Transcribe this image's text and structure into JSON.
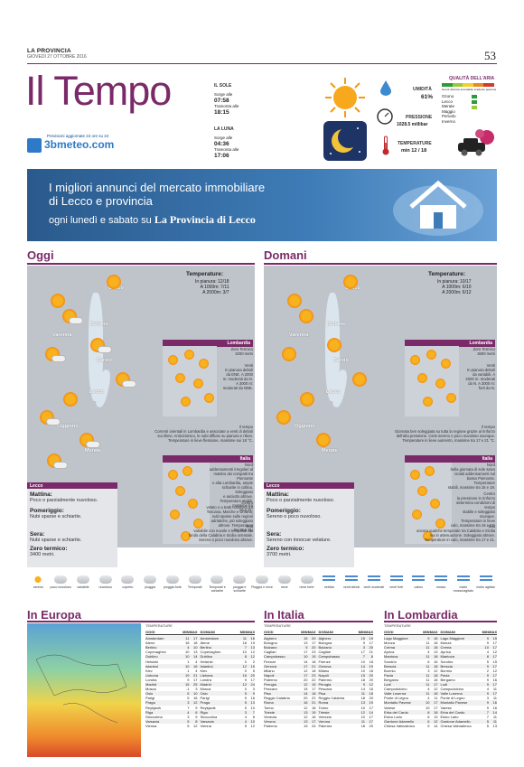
{
  "header": {
    "paper": "LA PROVINCIA",
    "date": "GIOVEDÌ 27 OTTOBRE 2016",
    "page": "53"
  },
  "title": "Il Tempo",
  "meteo": {
    "note": "Previsioni aggiornate 24 ore su 24",
    "logo": "3bmeteo.com"
  },
  "sole": {
    "label": "IL SOLE",
    "rise_label": "Sorge alle",
    "rise": "07:58",
    "set_label": "Tramonta alle",
    "set": "18:15"
  },
  "luna": {
    "label": "LA LUNA",
    "rise_label": "Sorge alle",
    "rise": "04:36",
    "set_label": "Tramonta alle",
    "set": "17:06"
  },
  "umidita": {
    "label": "UMIDITÀ",
    "value": "61%"
  },
  "pressione": {
    "label": "PRESSIONE",
    "value": "1028.5 millibar"
  },
  "temperature": {
    "label": "TEMPERATURE",
    "value": "min 12 / 18"
  },
  "aria": {
    "label": "QUALITÀ DELL'ARIA",
    "scale": [
      "buona",
      "discreta",
      "accettabile",
      "scadente",
      "pessima"
    ],
    "items": [
      "Ozono",
      "Lecco",
      "Merate",
      "Maggio",
      "Periodo",
      "Inverno"
    ]
  },
  "banner": {
    "line1": "I migliori annunci del mercato immobiliare",
    "line2": "di Lecco e provincia",
    "line3": "ogni lunedì e sabato su",
    "brand": "La Provincia di Lecco"
  },
  "oggi": {
    "title": "Oggi",
    "temp_label": "Temperature:",
    "temp_lines": [
      "In pianura: 12/18",
      "A 1000m: 7/11",
      "A 2000m: 3/7"
    ],
    "towns": [
      "Colico",
      "Varenna",
      "Bellano",
      "Barzio",
      "Lecco",
      "Oggiono",
      "Merate"
    ],
    "lomb_label": "Lombardia",
    "lomb_zero": "Zero Termico",
    "lomb_zero_val": "3200 metri",
    "lomb_venti": [
      "Venti",
      "In pianura deboli",
      "da ENE. A 2000",
      "m: moderati da N.",
      "A 3000 m:",
      "moderati da NNE."
    ],
    "lomb_tempo_label": "Il tempo",
    "lomb_tempo": [
      "Correnti orientali in Lombardia e associate a venti di deboli",
      "sui rilievi. Anticiclonico, le nubi diffuse su pianura e rilievi.",
      "Temperature in lieve flessione, massime sui 18 °C."
    ],
    "italia_label": "Italia",
    "nord": [
      "Nord",
      "addensamenti irregolari al",
      "mattino dei compatti tra Piemonte",
      "e alta Lombardia, ampie",
      "schiarite in collina. Soleggiato",
      "e asciutto altrove.",
      "Temperature stabili, massime tra",
      "16 e 21."
    ],
    "centro": [
      "Centro",
      "velato o a tratti nuvoloso tra",
      "Toscana, Marche e Umbria;",
      "nubi sparse sulle regioni",
      "adriatiche, più soleggiato",
      "altrove. Temperature",
      "tra 18 e 21."
    ],
    "sud": [
      "Sud",
      "variabile con nuvole e temporali dal",
      "fondo della Calabria e Sicilia orientale.",
      "Sereno o poco nuvoloso altrove.",
      "Temperature senza variazioni nelle",
      "massime tra 17 e 22."
    ],
    "box_label": "Lecco",
    "mattina_h": "Mattina:",
    "mattina": "Poco o parzialmente nuvoloso.",
    "pomeriggio_h": "Pomeriggio:",
    "pomeriggio": "Nubi sparse e schiarite.",
    "sera_h": "Sera:",
    "sera": "Nubi sparse e schiarite.",
    "zero_h": "Zero termico:",
    "zero": "3400 metri."
  },
  "domani": {
    "title": "Domani",
    "temp_label": "Temperature:",
    "temp_lines": [
      "In pianura: 10/17",
      "A 1000m: 6/10",
      "A 2000m: 6/12"
    ],
    "towns": [
      "Colico",
      "Varenna",
      "Bellano",
      "Barzio",
      "Lecco",
      "Oggiono",
      "Merate"
    ],
    "lomb_label": "Lombardia",
    "lomb_zero": "Zero Termico",
    "lomb_zero_val": "3600 metri",
    "lomb_venti": [
      "Venti",
      "In pianura deboli",
      "da variabili. A",
      "2000 m: moderati",
      "da N. A 3000 m:",
      "forti da N."
    ],
    "lomb_tempo_label": "Il tempo",
    "lomb_tempo": [
      "Giornata ben soleggiata su tutta la regione grazie al rinforzo",
      "dell'alta pressione. Cielo sereno o poco nuvoloso ovunque.",
      "Temperature in lieve aumento, massime tra 17 e 21 °C."
    ],
    "italia_label": "Italia",
    "nord": [
      "Nord",
      "bella giornata di sole salvo",
      "isolati addensamenti sul",
      "basso Piemonte. Temperature",
      "stabili, massime tra 15 e 19."
    ],
    "centro": [
      "Centro",
      "la pressione in rinforzo",
      "determina condizioni di tempo",
      "stabile e soleggiato ovunque.",
      "Temperature in lieve",
      "calo, massime tra 16 e 22."
    ],
    "sud": [
      "Sud",
      "ancora qualche temporale tra Calabria e Sicilia",
      "ma in attenuazione. Soleggiato altrove.",
      "Temperature in calo, massime tra 17 e 21."
    ],
    "box_label": "Lecco",
    "mattina_h": "Mattina:",
    "mattina": "Poco o parzialmente nuvoloso.",
    "pomeriggio_h": "Pomeriggio:",
    "pomeriggio": "Sereno o poco nuvoloso.",
    "sera_h": "Sera:",
    "sera": "Sereno con innocue velature.",
    "zero_h": "Zero termico:",
    "zero": "3700 metri."
  },
  "legend": [
    "sereno",
    "poco nuvoloso",
    "variabile",
    "nuvoloso",
    "coperto",
    "pioggia",
    "pioggia forte",
    "Temporali",
    "Temporali e schiarite",
    "pioggia e schiarite",
    "Pioggia e neve",
    "neve",
    "neve forte",
    "nebbia",
    "venti deboli",
    "venti moderati",
    "venti forti",
    "calmo",
    "mosso",
    "molto mosso/agitato",
    "molto agitato"
  ],
  "europa": {
    "title": "In Europa",
    "table_title": "TEMPERATURE",
    "cols": [
      "OGGI",
      "MIN",
      "MAX",
      "DOMANI",
      "MIN",
      "MAX"
    ],
    "rows": [
      [
        "Amsterdam",
        "11",
        "17",
        "Amsterdam",
        "11",
        "16"
      ],
      [
        "Atene",
        "18",
        "18",
        "Atene",
        "18",
        "19"
      ],
      [
        "Berlino",
        "4",
        "10",
        "Berlino",
        "7",
        "13"
      ],
      [
        "Copenaghen",
        "10",
        "13",
        "Copenaghen",
        "10",
        "12"
      ],
      [
        "Dublino",
        "10",
        "14",
        "Dublino",
        "8",
        "12"
      ],
      [
        "Helsinki",
        "1",
        "4",
        "Helsinki",
        "0",
        "2"
      ],
      [
        "Istanbul",
        "10",
        "16",
        "Istanbul",
        "12",
        "15"
      ],
      [
        "Kiev",
        "1",
        "4",
        "Kiev",
        "0",
        "5"
      ],
      [
        "Lisbona",
        "19",
        "21",
        "Lisbona",
        "16",
        "20"
      ],
      [
        "Londra",
        "9",
        "17",
        "Londra",
        "9",
        "17"
      ],
      [
        "Madrid",
        "15",
        "25",
        "Madrid",
        "12",
        "24"
      ],
      [
        "Mosca",
        "-1",
        "3",
        "Mosca",
        "0",
        "3"
      ],
      [
        "Oslo",
        "5",
        "10",
        "Oslo",
        "5",
        "9"
      ],
      [
        "Parigi",
        "5",
        "16",
        "Parigi",
        "5",
        "16"
      ],
      [
        "Praga",
        "3",
        "12",
        "Praga",
        "5",
        "13"
      ],
      [
        "Reykjavik",
        "7",
        "9",
        "Reykjavik",
        "5",
        "10"
      ],
      [
        "Riga",
        "4",
        "6",
        "Riga",
        "3",
        "7"
      ],
      [
        "Stoccolma",
        "3",
        "9",
        "Stoccolma",
        "4",
        "8"
      ],
      [
        "Varsavia",
        "5",
        "8",
        "Varsavia",
        "4",
        "10"
      ],
      [
        "Vienna",
        "5",
        "12",
        "Vienna",
        "5",
        "12"
      ]
    ]
  },
  "italia": {
    "title": "In Italia",
    "table_title": "TEMPERATURE",
    "cols": [
      "OGGI",
      "MIN",
      "MAX",
      "DOMANI",
      "MIN",
      "MAX"
    ],
    "rows": [
      [
        "Alghero",
        "15",
        "20",
        "Alghero",
        "15",
        "19"
      ],
      [
        "Bologna",
        "13",
        "17",
        "Bologna",
        "9",
        "17"
      ],
      [
        "Bolzano",
        "5",
        "20",
        "Bolzano",
        "3",
        "20"
      ],
      [
        "Cagliari",
        "17",
        "23",
        "Cagliari",
        "17",
        "21"
      ],
      [
        "Campobasso",
        "10",
        "15",
        "Campobasso",
        "7",
        "8"
      ],
      [
        "Firenze",
        "14",
        "18",
        "Firenze",
        "10",
        "18"
      ],
      [
        "Genova",
        "17",
        "21",
        "Genova",
        "14",
        "19"
      ],
      [
        "Milano",
        "12",
        "18",
        "Milano",
        "10",
        "18"
      ],
      [
        "Napoli",
        "17",
        "23",
        "Napoli",
        "15",
        "20"
      ],
      [
        "Palermo",
        "20",
        "22",
        "Palermo",
        "18",
        "20"
      ],
      [
        "Perugia",
        "12",
        "15",
        "Perugia",
        "9",
        "12"
      ],
      [
        "Pescara",
        "15",
        "17",
        "Pescara",
        "14",
        "16"
      ],
      [
        "Pisa",
        "14",
        "18",
        "Pisa",
        "11",
        "18"
      ],
      [
        "Reggio Calabria",
        "20",
        "22",
        "Reggio Calabria",
        "18",
        "20"
      ],
      [
        "Roma",
        "16",
        "21",
        "Roma",
        "13",
        "19"
      ],
      [
        "Torino",
        "12",
        "18",
        "Torino",
        "10",
        "17"
      ],
      [
        "Trieste",
        "13",
        "15",
        "Trieste",
        "12",
        "14"
      ],
      [
        "Venezia",
        "12",
        "16",
        "Venezia",
        "10",
        "17"
      ],
      [
        "Verona",
        "13",
        "17",
        "Verona",
        "11",
        "17"
      ],
      [
        "Palermo",
        "19",
        "24",
        "Palermo",
        "18",
        "20"
      ]
    ]
  },
  "lombardia": {
    "title": "In Lombardia",
    "table_title": "TEMPERATURE",
    "cols": [
      "OGGI",
      "MIN",
      "MAX",
      "DOMANI",
      "MIN",
      "MAX"
    ],
    "rows": [
      [
        "Lago Maggiore",
        "9",
        "16",
        "Lago Maggiore",
        "9",
        "15"
      ],
      [
        "Monza",
        "11",
        "18",
        "Monza",
        "9",
        "17"
      ],
      [
        "Crema",
        "11",
        "18",
        "Crema",
        "10",
        "17"
      ],
      [
        "Aprica",
        "4",
        "13",
        "Aprica",
        "4",
        "12"
      ],
      [
        "Mantova",
        "11",
        "18",
        "Mantova",
        "8",
        "17"
      ],
      [
        "Sondrio",
        "6",
        "16",
        "Sondrio",
        "5",
        "15"
      ],
      [
        "Brescia",
        "11",
        "18",
        "Brescia",
        "9",
        "17"
      ],
      [
        "Bormio",
        "3",
        "12",
        "Bormio",
        "2",
        "12"
      ],
      [
        "Pavia",
        "11",
        "18",
        "Pavia",
        "9",
        "17"
      ],
      [
        "Bergamo",
        "11",
        "18",
        "Bergamo",
        "9",
        "16"
      ],
      [
        "Lodi",
        "11",
        "17",
        "Lodi",
        "9",
        "17"
      ],
      [
        "Campodolcino",
        "4",
        "12",
        "Campodolcino",
        "4",
        "11"
      ],
      [
        "Valle Luserna",
        "11",
        "18",
        "Valle Luserna",
        "9",
        "17"
      ],
      [
        "Ponte di Legno",
        "4",
        "11",
        "Ponte di Legno",
        "3",
        "11"
      ],
      [
        "Montalto Pavese",
        "10",
        "17",
        "Montalto Pavese",
        "9",
        "16"
      ],
      [
        "Varese",
        "10",
        "17",
        "Varese",
        "9",
        "16"
      ],
      [
        "Erba del Cardo",
        "8",
        "18",
        "Erba del Cardo",
        "7",
        "14"
      ],
      [
        "Esino Lario",
        "6",
        "13",
        "Esino Lario",
        "7",
        "11"
      ],
      [
        "Gardone Adamello",
        "6",
        "12",
        "Gardone Adamello",
        "5",
        "11"
      ],
      [
        "Chiesa Valmalenco",
        "5",
        "14",
        "Chiesa Valmalenco",
        "5",
        "13"
      ]
    ]
  },
  "colors": {
    "accent": "#7a2a68",
    "brand_blue": "#2f7ac8"
  }
}
